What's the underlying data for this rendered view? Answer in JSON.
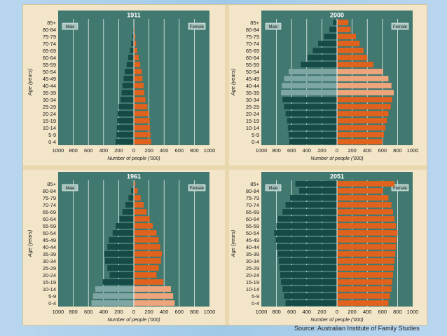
{
  "chart_data": [
    {
      "type": "bar",
      "title": "1911",
      "xlabel": "Number of people ('000)",
      "ylabel": "Age (years)",
      "legend_left": "Male",
      "legend_right": "Female",
      "xlim": [
        -1000,
        1000
      ],
      "xticks": [
        "1000",
        "800",
        "600",
        "400",
        "200",
        "0",
        "200",
        "400",
        "600",
        "800",
        "1000"
      ],
      "categories": [
        "85+",
        "80-84",
        "75-79",
        "70-74",
        "65-69",
        "60-64",
        "55-59",
        "50-54",
        "45-49",
        "40-44",
        "35-39",
        "30-34",
        "25-29",
        "20-24",
        "15-19",
        "10-14",
        "5-9",
        "0-4"
      ],
      "series": [
        {
          "name": "Male",
          "values": [
            5,
            10,
            20,
            35,
            50,
            75,
            95,
            120,
            135,
            150,
            160,
            175,
            200,
            215,
            220,
            225,
            230,
            240
          ]
        },
        {
          "name": "Female",
          "values": [
            5,
            10,
            20,
            30,
            45,
            65,
            85,
            105,
            115,
            130,
            140,
            155,
            180,
            200,
            210,
            215,
            220,
            230
          ]
        }
      ]
    },
    {
      "type": "bar",
      "title": "2000",
      "xlabel": "Number of people ('000)",
      "ylabel": "Age (years)",
      "legend_left": "Male",
      "legend_right": "Female",
      "xlim": [
        -1000,
        1000
      ],
      "xticks": [
        "1000",
        "800",
        "600",
        "400",
        "200",
        "0",
        "200",
        "400",
        "600",
        "800",
        "1000"
      ],
      "categories": [
        "85+",
        "80-84",
        "75-79",
        "70-74",
        "65-69",
        "60-64",
        "55-59",
        "50-54",
        "45-49",
        "40-44",
        "35-39",
        "30-34",
        "25-29",
        "20-24",
        "15-19",
        "10-14",
        "5-9",
        "0-4"
      ],
      "series": [
        {
          "name": "Male",
          "values": [
            50,
            100,
            170,
            250,
            320,
            390,
            480,
            640,
            700,
            730,
            740,
            720,
            700,
            680,
            660,
            650,
            640,
            630
          ]
        },
        {
          "name": "Female",
          "values": [
            150,
            180,
            250,
            300,
            350,
            400,
            480,
            610,
            680,
            720,
            750,
            730,
            710,
            680,
            660,
            640,
            620,
            600
          ]
        }
      ]
    },
    {
      "type": "bar",
      "title": "1961",
      "xlabel": "Number of people ('000)",
      "ylabel": "Age (years)",
      "legend_left": "Male",
      "legend_right": "Female",
      "xlim": [
        -1000,
        1000
      ],
      "xticks": [
        "1000",
        "800",
        "600",
        "400",
        "200",
        "0",
        "200",
        "400",
        "600",
        "800",
        "1000"
      ],
      "categories": [
        "85+",
        "80-84",
        "75-79",
        "70-74",
        "65-69",
        "60-64",
        "55-59",
        "50-54",
        "45-49",
        "40-44",
        "35-39",
        "30-34",
        "25-29",
        "20-24",
        "15-19",
        "10-14",
        "5-9",
        "0-4"
      ],
      "series": [
        {
          "name": "Male",
          "values": [
            10,
            35,
            70,
            110,
            150,
            190,
            240,
            280,
            330,
            350,
            390,
            380,
            350,
            320,
            410,
            510,
            540,
            560
          ]
        },
        {
          "name": "Female",
          "values": [
            20,
            50,
            90,
            130,
            170,
            210,
            250,
            300,
            330,
            350,
            370,
            360,
            330,
            300,
            390,
            490,
            520,
            540
          ]
        }
      ]
    },
    {
      "type": "bar",
      "title": "2051",
      "xlabel": "Number of people ('000)",
      "ylabel": "Age (years)",
      "legend_left": "Male",
      "legend_right": "Female",
      "xlim": [
        -1000,
        1000
      ],
      "xticks": [
        "1000",
        "800",
        "600",
        "400",
        "200",
        "0",
        "200",
        "400",
        "600",
        "800",
        "1000"
      ],
      "categories": [
        "85+",
        "80-84",
        "75-79",
        "70-74",
        "65-69",
        "60-64",
        "55-59",
        "50-54",
        "45-49",
        "40-44",
        "35-39",
        "30-34",
        "25-29",
        "20-24",
        "15-19",
        "10-14",
        "5-9",
        "0-4"
      ],
      "series": [
        {
          "name": "Male",
          "values": [
            550,
            500,
            620,
            680,
            720,
            780,
            800,
            830,
            810,
            800,
            780,
            770,
            760,
            750,
            740,
            720,
            700,
            680
          ]
        },
        {
          "name": "Female",
          "values": [
            760,
            610,
            680,
            720,
            740,
            760,
            780,
            800,
            790,
            780,
            770,
            760,
            750,
            740,
            730,
            720,
            700,
            680
          ]
        }
      ]
    }
  ],
  "source": "Source:  Australian Institute of Family Studies",
  "colors": {
    "male": "#154a46",
    "male_light": "#7ea6a3",
    "female": "#e0621d",
    "female_light": "#eea57b",
    "panel": "#41786f",
    "legend_box": "#a6c3bd"
  }
}
